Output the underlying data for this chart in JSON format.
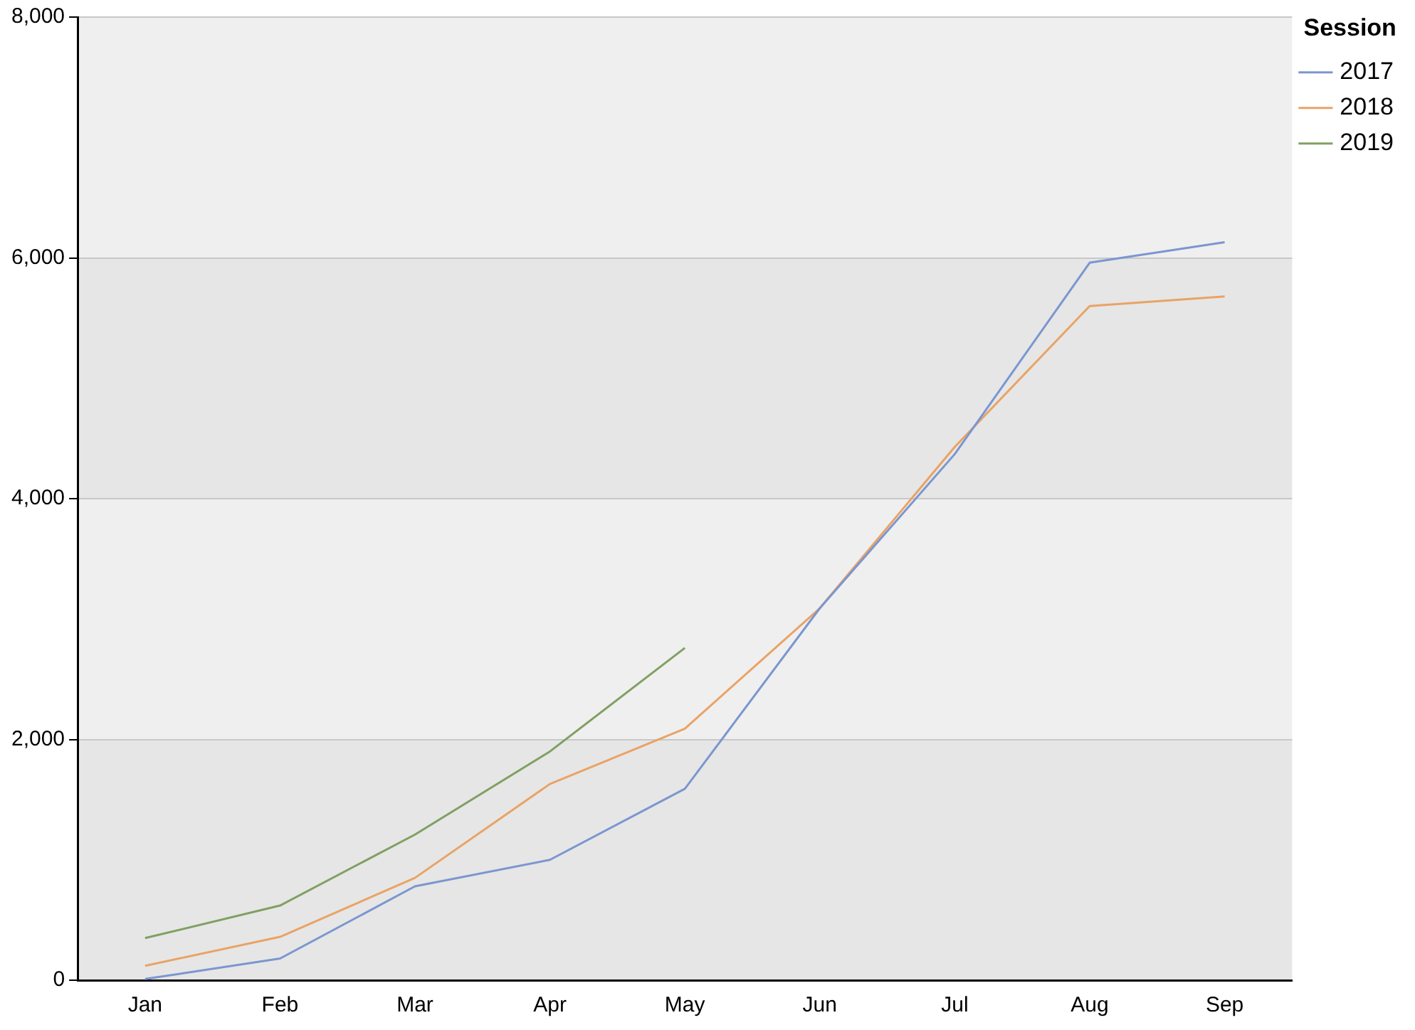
{
  "chart_data": {
    "type": "line",
    "legend_title": "Session",
    "legend": "top right",
    "grid": "y",
    "marker": "none",
    "line_style": "solid",
    "categories": [
      "Jan",
      "Feb",
      "Mar",
      "Apr",
      "May",
      "Jun",
      "Jul",
      "Aug",
      "Sep"
    ],
    "ylim": [
      0,
      8000
    ],
    "yticks": [
      {
        "value": 0,
        "label": "0"
      },
      {
        "value": 2000,
        "label": "2,000"
      },
      {
        "value": 4000,
        "label": "4,000"
      },
      {
        "value": 6000,
        "label": "6,000"
      },
      {
        "value": 8000,
        "label": "8,000"
      }
    ],
    "series": [
      {
        "name": "2017",
        "color": "#7b96d0",
        "values": [
          10,
          180,
          780,
          1000,
          1590,
          3090,
          4370,
          5960,
          6130
        ]
      },
      {
        "name": "2018",
        "color": "#e9a366",
        "values": [
          120,
          360,
          850,
          1630,
          2090,
          3090,
          4430,
          5600,
          5680
        ]
      },
      {
        "name": "2019",
        "color": "#80a062",
        "values": [
          350,
          620,
          1210,
          1900,
          2760,
          null,
          null,
          null,
          null
        ]
      }
    ]
  }
}
